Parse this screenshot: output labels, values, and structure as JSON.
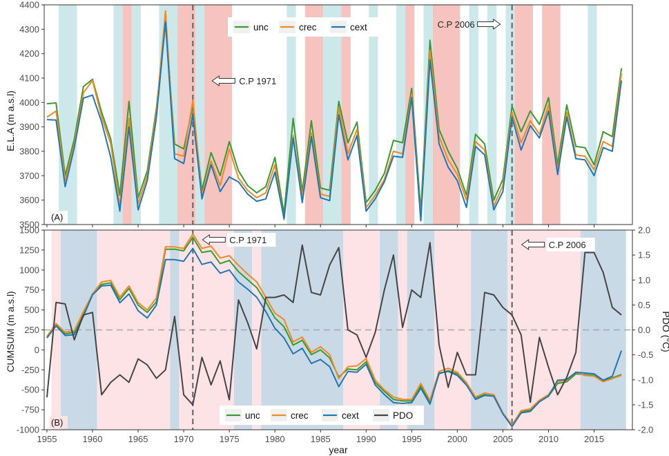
{
  "colors": {
    "unc": "#3a9a2e",
    "crec": "#f08a24",
    "cext": "#1f77b4",
    "pdo": "#454545",
    "band_blue_a": "#cde8ea",
    "band_red_a": "#f6c3bf",
    "band_blue_b": "#c9d9e6",
    "band_red_b": "#fde3e6",
    "cp_line": "#6a6a6a"
  },
  "chart_data": [
    {
      "type": "line",
      "panel_label": "(A)",
      "ylabel": "E.L.A (m a.s.l)",
      "xlabel": "",
      "xlim": [
        1954.7,
        2019.2
      ],
      "ylim": [
        3500,
        4400
      ],
      "yticks": [
        3500,
        3600,
        3700,
        3800,
        3900,
        4000,
        4100,
        4200,
        4300,
        4400
      ],
      "xticks": [
        1955,
        1960,
        1965,
        1970,
        1975,
        1980,
        1985,
        1990,
        1995,
        2000,
        2005,
        2010,
        2015
      ],
      "legend": {
        "position": "top-center",
        "entries": [
          "unc",
          "crec",
          "cext"
        ]
      },
      "change_points": [
        {
          "year": 1971,
          "label": "C.P 1971",
          "arrow": "left"
        },
        {
          "year": 2006,
          "label": "C.P 2006",
          "arrow": "right"
        }
      ],
      "shaded_periods": [
        {
          "start": 1956.3,
          "end": 1958.3,
          "kind": "blue"
        },
        {
          "start": 1962.3,
          "end": 1963.3,
          "kind": "blue"
        },
        {
          "start": 1963.3,
          "end": 1964.3,
          "kind": "red"
        },
        {
          "start": 1964.3,
          "end": 1965.3,
          "kind": "blue"
        },
        {
          "start": 1967.3,
          "end": 1969.3,
          "kind": "blue"
        },
        {
          "start": 1969.3,
          "end": 1971.3,
          "kind": "red"
        },
        {
          "start": 1971.3,
          "end": 1972.3,
          "kind": "blue"
        },
        {
          "start": 1972.3,
          "end": 1975.3,
          "kind": "red"
        },
        {
          "start": 1981.3,
          "end": 1982.3,
          "kind": "blue"
        },
        {
          "start": 1983.3,
          "end": 1985.3,
          "kind": "red"
        },
        {
          "start": 1985.3,
          "end": 1987.3,
          "kind": "blue"
        },
        {
          "start": 1987.3,
          "end": 1988.3,
          "kind": "red"
        },
        {
          "start": 1990.3,
          "end": 1991.3,
          "kind": "blue"
        },
        {
          "start": 1993.3,
          "end": 1994.3,
          "kind": "blue"
        },
        {
          "start": 1994.3,
          "end": 1995.3,
          "kind": "red"
        },
        {
          "start": 1996.3,
          "end": 1997.3,
          "kind": "blue"
        },
        {
          "start": 1997.3,
          "end": 2000.3,
          "kind": "red"
        },
        {
          "start": 2001.3,
          "end": 2002.3,
          "kind": "blue"
        },
        {
          "start": 2003.3,
          "end": 2004.3,
          "kind": "blue"
        },
        {
          "start": 2005.3,
          "end": 2006.3,
          "kind": "blue"
        },
        {
          "start": 2006.3,
          "end": 2008.3,
          "kind": "red"
        },
        {
          "start": 2009.3,
          "end": 2011.3,
          "kind": "red"
        },
        {
          "start": 2014.3,
          "end": 2015.3,
          "kind": "blue"
        }
      ],
      "x": [
        1955,
        1956,
        1957,
        1958,
        1959,
        1960,
        1961,
        1962,
        1963,
        1964,
        1965,
        1966,
        1967,
        1968,
        1969,
        1970,
        1971,
        1972,
        1973,
        1974,
        1975,
        1976,
        1977,
        1978,
        1979,
        1980,
        1981,
        1982,
        1983,
        1984,
        1985,
        1986,
        1987,
        1988,
        1989,
        1990,
        1991,
        1992,
        1993,
        1994,
        1995,
        1996,
        1997,
        1998,
        1999,
        2000,
        2001,
        2002,
        2003,
        2004,
        2005,
        2006,
        2007,
        2008,
        2009,
        2010,
        2011,
        2012,
        2013,
        2014,
        2015,
        2016,
        2017,
        2018
      ],
      "series": [
        {
          "name": "unc",
          "values": [
            3995,
            3998,
            3700,
            3850,
            4065,
            4095,
            3960,
            3850,
            3620,
            4005,
            3610,
            3720,
            3975,
            4335,
            3830,
            3810,
            3985,
            3640,
            3795,
            3700,
            3840,
            3720,
            3660,
            3630,
            3655,
            3775,
            3545,
            3935,
            3635,
            3925,
            3650,
            3640,
            4005,
            3835,
            3920,
            3590,
            3640,
            3710,
            3845,
            3835,
            4058,
            3555,
            4255,
            3890,
            3800,
            3730,
            3620,
            3870,
            3830,
            3600,
            3685,
            3985,
            3880,
            3965,
            3910,
            4020,
            3745,
            3990,
            3820,
            3815,
            3745,
            3880,
            3860,
            4140
          ]
        },
        {
          "name": "crec",
          "values": [
            3940,
            3965,
            3680,
            3830,
            4040,
            4090,
            3940,
            3830,
            3575,
            3935,
            3585,
            3700,
            3960,
            4375,
            3790,
            3780,
            4010,
            3620,
            3760,
            3660,
            3810,
            3690,
            3640,
            3610,
            3630,
            3745,
            3520,
            3865,
            3610,
            3875,
            3625,
            3615,
            3980,
            3790,
            3890,
            3570,
            3620,
            3685,
            3800,
            3790,
            4035,
            3530,
            4215,
            3860,
            3765,
            3705,
            3600,
            3840,
            3805,
            3575,
            3660,
            3960,
            3835,
            3925,
            3870,
            3990,
            3720,
            3960,
            3785,
            3780,
            3725,
            3840,
            3820,
            4120
          ]
        },
        {
          "name": "cext",
          "values": [
            3930,
            3928,
            3655,
            3815,
            4018,
            4030,
            3920,
            3775,
            3555,
            3900,
            3560,
            3680,
            3938,
            4330,
            3770,
            3750,
            3950,
            3605,
            3745,
            3635,
            3695,
            3675,
            3625,
            3595,
            3605,
            3715,
            3525,
            3855,
            3590,
            3860,
            3610,
            3598,
            3950,
            3765,
            3865,
            3555,
            3605,
            3675,
            3780,
            3775,
            4020,
            3515,
            4175,
            3830,
            3735,
            3680,
            3570,
            3820,
            3785,
            3560,
            3635,
            3940,
            3805,
            3905,
            3855,
            3965,
            3705,
            3940,
            3770,
            3765,
            3700,
            3815,
            3800,
            4090
          ]
        }
      ]
    },
    {
      "type": "line",
      "panel_label": "(B)",
      "ylabel": "CUMSUM (m a.s.l)",
      "y2label": "PDO (°C)",
      "xlabel": "year",
      "xlim": [
        1954.7,
        2019.2
      ],
      "ylim": [
        -1000,
        1500
      ],
      "y2lim": [
        -2.0,
        2.0
      ],
      "yticks": [
        -1000,
        -750,
        -500,
        -250,
        0,
        250,
        500,
        750,
        1000,
        1250,
        1500
      ],
      "y2ticks": [
        -2.0,
        -1.5,
        -1.0,
        -0.5,
        0.0,
        0.5,
        1.0,
        1.5,
        2.0
      ],
      "xticks": [
        1955,
        1960,
        1965,
        1970,
        1975,
        1980,
        1985,
        1990,
        1995,
        2000,
        2005,
        2010,
        2015
      ],
      "legend": {
        "position": "bottom-center",
        "entries": [
          "unc",
          "crec",
          "cext",
          "PDO"
        ]
      },
      "zero_line_pdo": 0.0,
      "change_points": [
        {
          "year": 1971,
          "label": "C.P 1971",
          "arrow": "left"
        },
        {
          "year": 2006,
          "label": "C.P 2006",
          "arrow": "left"
        }
      ],
      "shaded_periods": [
        {
          "start": 1955.5,
          "end": 1956.5,
          "kind": "red"
        },
        {
          "start": 1956.5,
          "end": 1960.5,
          "kind": "blue"
        },
        {
          "start": 1960.5,
          "end": 1968.5,
          "kind": "red"
        },
        {
          "start": 1968.5,
          "end": 1969.5,
          "kind": "blue"
        },
        {
          "start": 1969.5,
          "end": 1975.5,
          "kind": "red"
        },
        {
          "start": 1975.5,
          "end": 1977.5,
          "kind": "blue"
        },
        {
          "start": 1977.5,
          "end": 1978.5,
          "kind": "red"
        },
        {
          "start": 1978.5,
          "end": 1987.5,
          "kind": "blue"
        },
        {
          "start": 1987.5,
          "end": 1991.5,
          "kind": "red"
        },
        {
          "start": 1991.5,
          "end": 1993.5,
          "kind": "blue"
        },
        {
          "start": 1993.5,
          "end": 1994.5,
          "kind": "red"
        },
        {
          "start": 1994.5,
          "end": 1997.5,
          "kind": "blue"
        },
        {
          "start": 1997.5,
          "end": 2001.5,
          "kind": "red"
        },
        {
          "start": 2001.5,
          "end": 2005.5,
          "kind": "blue"
        },
        {
          "start": 2005.5,
          "end": 2013.5,
          "kind": "red"
        },
        {
          "start": 2013.5,
          "end": 2018.5,
          "kind": "blue"
        }
      ],
      "x": [
        1955,
        1956,
        1957,
        1958,
        1959,
        1960,
        1961,
        1962,
        1963,
        1964,
        1965,
        1966,
        1967,
        1968,
        1969,
        1970,
        1971,
        1972,
        1973,
        1974,
        1975,
        1976,
        1977,
        1978,
        1979,
        1980,
        1981,
        1982,
        1983,
        1984,
        1985,
        1986,
        1987,
        1988,
        1989,
        1990,
        1991,
        1992,
        1993,
        1994,
        1995,
        1996,
        1997,
        1998,
        1999,
        2000,
        2001,
        2002,
        2003,
        2004,
        2005,
        2006,
        2007,
        2008,
        2009,
        2010,
        2011,
        2012,
        2013,
        2014,
        2015,
        2016,
        2017,
        2018
      ],
      "series": [
        {
          "name": "unc",
          "axis": "left",
          "values": [
            160,
            310,
            200,
            220,
            450,
            700,
            820,
            840,
            630,
            770,
            560,
            470,
            600,
            1260,
            1260,
            1240,
            1410,
            1220,
            1240,
            1080,
            1120,
            980,
            880,
            780,
            600,
            400,
            290,
            60,
            120,
            -60,
            0,
            -100,
            -340,
            -240,
            -250,
            -150,
            -410,
            -520,
            -620,
            -640,
            -640,
            -450,
            -660,
            -300,
            -260,
            -300,
            -420,
            -600,
            -560,
            -580,
            -800,
            -950,
            -780,
            -750,
            -640,
            -580,
            -420,
            -400,
            -300,
            -310,
            -320,
            -390,
            -350,
            -310
          ]
        },
        {
          "name": "crec",
          "axis": "left",
          "values": [
            170,
            330,
            220,
            240,
            480,
            700,
            850,
            870,
            660,
            800,
            590,
            500,
            650,
            1290,
            1290,
            1270,
            1450,
            1270,
            1300,
            1150,
            1180,
            1060,
            950,
            850,
            660,
            460,
            380,
            100,
            160,
            -30,
            40,
            -60,
            -360,
            -210,
            -200,
            -110,
            -380,
            -500,
            -590,
            -620,
            -620,
            -420,
            -630,
            -270,
            -230,
            -280,
            -410,
            -590,
            -540,
            -560,
            -790,
            -940,
            -760,
            -740,
            -630,
            -560,
            -400,
            -380,
            -280,
            -320,
            -330,
            -400,
            -360,
            -320
          ]
        },
        {
          "name": "cext",
          "axis": "left",
          "values": [
            150,
            300,
            180,
            190,
            420,
            690,
            800,
            810,
            590,
            700,
            490,
            400,
            560,
            1130,
            1130,
            1110,
            1270,
            1070,
            1100,
            960,
            1000,
            850,
            760,
            660,
            480,
            270,
            150,
            -50,
            20,
            -170,
            -120,
            -210,
            -460,
            -270,
            -280,
            -180,
            -440,
            -560,
            -660,
            -670,
            -660,
            -480,
            -680,
            -290,
            -270,
            -320,
            -440,
            -620,
            -570,
            -580,
            -800,
            -960,
            -790,
            -770,
            -650,
            -580,
            -380,
            -370,
            -280,
            -290,
            -300,
            -380,
            -330,
            -10
          ]
        },
        {
          "name": "PDO",
          "axis": "right",
          "values": [
            -1.35,
            0.55,
            0.52,
            -0.2,
            0.3,
            0.35,
            -1.3,
            -1.05,
            -0.9,
            -1.05,
            -0.58,
            -0.7,
            -0.97,
            -0.8,
            0.27,
            -1.3,
            -1.5,
            -0.55,
            -1.1,
            -0.62,
            -1.4,
            0.6,
            0.15,
            -0.38,
            0.65,
            0.65,
            0.7,
            0.55,
            1.7,
            0.75,
            0.7,
            1.3,
            1.65,
            0.0,
            -0.1,
            -0.55,
            -0.05,
            0.8,
            1.5,
            0.05,
            0.8,
            0.65,
            1.75,
            -0.3,
            -1.15,
            -0.45,
            -0.9,
            -0.9,
            0.75,
            0.7,
            0.45,
            0.3,
            -0.1,
            -1.45,
            -0.15,
            -0.75,
            -1.3,
            -0.95,
            -0.45,
            1.55,
            1.55,
            1.15,
            0.45,
            0.3
          ]
        }
      ]
    }
  ]
}
